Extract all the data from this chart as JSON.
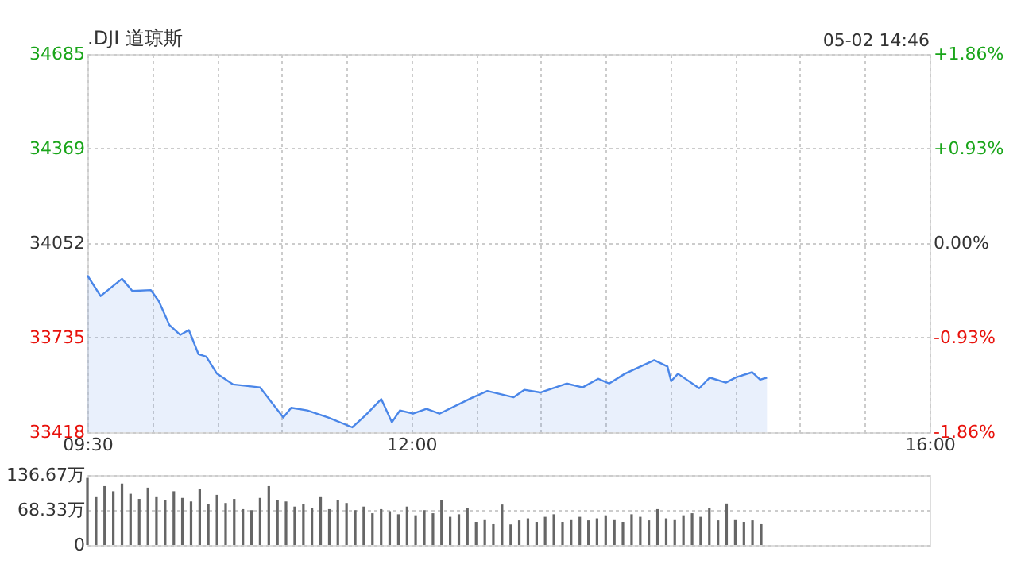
{
  "chart_data": [
    {
      "type": "area",
      "title": ".DJI 道琼斯",
      "annotations": [
        "05-02 14:46"
      ],
      "color": "#4a86e8",
      "grid": true,
      "x": [
        9.5,
        9.602,
        9.767,
        9.847,
        9.99,
        10.05,
        10.133,
        10.217,
        10.283,
        10.358,
        10.417,
        10.5,
        10.625,
        10.833,
        11.012,
        11.073,
        11.197,
        11.36,
        11.545,
        11.647,
        11.768,
        11.85,
        11.912,
        12.013,
        12.117,
        12.217,
        12.463,
        12.587,
        12.79,
        12.872,
        12.995,
        13.198,
        13.322,
        13.443,
        13.527,
        13.648,
        13.875,
        13.977,
        14.005,
        14.058,
        14.222,
        14.303,
        14.427,
        14.507,
        14.63,
        14.692,
        14.745
      ],
      "values": [
        33943,
        33874,
        33932,
        33891,
        33894,
        33858,
        33777,
        33744,
        33760,
        33679,
        33671,
        33614,
        33578,
        33568,
        33467,
        33500,
        33491,
        33467,
        33434,
        33475,
        33529,
        33451,
        33491,
        33480,
        33496,
        33480,
        33532,
        33556,
        33535,
        33560,
        33551,
        33581,
        33568,
        33597,
        33581,
        33614,
        33659,
        33638,
        33589,
        33614,
        33565,
        33601,
        33584,
        33602,
        33619,
        33594,
        33601
      ],
      "xlim": [
        9.5,
        16
      ],
      "xticks": [
        {
          "value": 9.5,
          "label": "09:30"
        },
        {
          "value": 10,
          "label": null
        },
        {
          "value": 10.5,
          "label": null
        },
        {
          "value": 11,
          "label": null
        },
        {
          "value": 11.5,
          "label": null
        },
        {
          "value": 12,
          "label": "12:00"
        },
        {
          "value": 12.5,
          "label": null
        },
        {
          "value": 13,
          "label": null
        },
        {
          "value": 13.5,
          "label": null
        },
        {
          "value": 14,
          "label": null
        },
        {
          "value": 14.5,
          "label": null
        },
        {
          "value": 15,
          "label": null
        },
        {
          "value": 15.5,
          "label": null
        },
        {
          "value": 16,
          "label": "16:00"
        }
      ],
      "ylim": [
        33418,
        34685
      ],
      "yticks": [
        33418,
        33735,
        34052,
        34369,
        34685
      ],
      "y2lim": [
        -1.86,
        1.86
      ],
      "y2ticks": [
        {
          "value": -1.86,
          "label": "-1.86%"
        },
        {
          "value": -0.93,
          "label": "-0.93%"
        },
        {
          "value": 0,
          "label": "0.00%"
        },
        {
          "value": 0.93,
          "label": "+0.93%"
        },
        {
          "value": 1.86,
          "label": "+1.86%"
        }
      ]
    },
    {
      "type": "bar",
      "color": "#666666",
      "grid": "y",
      "tick_labels": "y",
      "x": [
        9.5,
        9.567,
        9.633,
        9.7,
        9.767,
        9.833,
        9.9,
        9.967,
        10.033,
        10.1,
        10.167,
        10.233,
        10.3,
        10.367,
        10.433,
        10.5,
        10.567,
        10.633,
        10.7,
        10.767,
        10.833,
        10.9,
        10.967,
        11.033,
        11.1,
        11.167,
        11.233,
        11.3,
        11.367,
        11.433,
        11.5,
        11.567,
        11.633,
        11.7,
        11.767,
        11.833,
        11.9,
        11.967,
        12.033,
        12.1,
        12.167,
        12.233,
        12.3,
        12.367,
        12.433,
        12.5,
        12.567,
        12.633,
        12.7,
        12.767,
        12.833,
        12.9,
        12.967,
        13.033,
        13.1,
        13.167,
        13.233,
        13.3,
        13.367,
        13.433,
        13.5,
        13.567,
        13.633,
        13.7,
        13.767,
        13.833,
        13.9,
        13.967,
        14.033,
        14.1,
        14.167,
        14.233,
        14.3,
        14.367,
        14.433,
        14.5,
        14.567,
        14.633,
        14.7
      ],
      "values": [
        131,
        95,
        115,
        105,
        120,
        100,
        90,
        112,
        95,
        88,
        105,
        92,
        85,
        110,
        80,
        98,
        82,
        90,
        70,
        68,
        92,
        115,
        88,
        85,
        75,
        80,
        72,
        95,
        70,
        88,
        82,
        68,
        75,
        62,
        70,
        66,
        60,
        75,
        58,
        68,
        62,
        88,
        55,
        60,
        72,
        45,
        50,
        42,
        79,
        40,
        48,
        52,
        45,
        55,
        60,
        45,
        50,
        55,
        48,
        52,
        58,
        50,
        45,
        60,
        55,
        48,
        70,
        52,
        50,
        58,
        62,
        55,
        72,
        48,
        81,
        50,
        45,
        48,
        42
      ],
      "xlim": [
        9.5,
        16
      ],
      "ylim": [
        0,
        136.67
      ],
      "yticks": [
        0,
        {
          "value": 68.33,
          "label": "68.33万"
        },
        {
          "value": 136.67,
          "label": "136.67万"
        }
      ]
    }
  ]
}
